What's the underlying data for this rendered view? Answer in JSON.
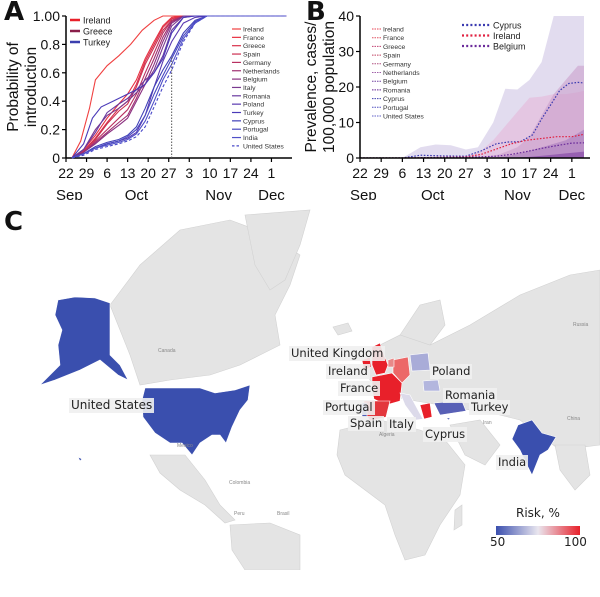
{
  "panels": {
    "a": "A",
    "b": "B",
    "c": "C"
  },
  "chart_data": [
    {
      "id": "A",
      "type": "line",
      "title": "",
      "ylabel": "Probability of introduction",
      "ylabel_lines": [
        "Probability of",
        "introduction"
      ],
      "xlabel": "",
      "ylim": [
        0,
        1
      ],
      "yticks": [
        "0",
        "0.2",
        "0.4",
        "0.6",
        "0.8",
        "1.00"
      ],
      "ytick_values": [
        0,
        0.2,
        0.4,
        0.6,
        0.8,
        1.0
      ],
      "xtick_days": [
        "22",
        "29",
        "6",
        "13",
        "20",
        "27",
        "3",
        "10",
        "17",
        "24",
        "1"
      ],
      "xtick_offsets": [
        0,
        7,
        14,
        21,
        28,
        35,
        42,
        49,
        56,
        63,
        70
      ],
      "months": [
        {
          "label": "Sep",
          "offset": 0
        },
        {
          "label": "Oct",
          "offset": 24
        },
        {
          "label": "Nov",
          "offset": 52
        },
        {
          "label": "Dec",
          "offset": 70
        }
      ],
      "x_range_days": [
        0,
        77
      ],
      "x_axis_note": "days since Sep 22",
      "vline_day": 36,
      "legend_highlight": [
        {
          "name": "Ireland",
          "color": "#e8202a"
        },
        {
          "name": "Greece",
          "color": "#8a1f4a"
        },
        {
          "name": "Turkey",
          "color": "#3b3fae"
        }
      ],
      "series": [
        {
          "name": "Ireland",
          "color": "#f04040",
          "dash": false,
          "x": [
            2,
            5,
            8,
            10,
            14,
            18,
            22,
            26,
            30,
            33,
            36,
            40
          ],
          "y": [
            0,
            0.12,
            0.35,
            0.55,
            0.65,
            0.72,
            0.8,
            0.9,
            0.97,
            1,
            1,
            1
          ]
        },
        {
          "name": "France",
          "color": "#e83040",
          "dash": false,
          "x": [
            2,
            6,
            10,
            14,
            18,
            21,
            24,
            27,
            30,
            33,
            36,
            40,
            44
          ],
          "y": [
            0,
            0.06,
            0.16,
            0.28,
            0.38,
            0.45,
            0.55,
            0.7,
            0.82,
            0.93,
            0.99,
            1,
            1
          ]
        },
        {
          "name": "Greece",
          "color": "#d8304a",
          "dash": false,
          "x": [
            2,
            6,
            10,
            14,
            18,
            21,
            24,
            27,
            30,
            33,
            36,
            40,
            44
          ],
          "y": [
            0,
            0.05,
            0.14,
            0.25,
            0.35,
            0.4,
            0.52,
            0.68,
            0.8,
            0.92,
            0.98,
            1,
            1
          ]
        },
        {
          "name": "Spain",
          "color": "#cc3050",
          "dash": false,
          "x": [
            2,
            6,
            10,
            14,
            18,
            21,
            24,
            27,
            30,
            33,
            36,
            40,
            44
          ],
          "y": [
            0,
            0.05,
            0.13,
            0.24,
            0.33,
            0.38,
            0.5,
            0.66,
            0.78,
            0.9,
            0.97,
            1,
            1
          ]
        },
        {
          "name": "Germany",
          "color": "#b83060",
          "dash": false,
          "x": [
            2,
            6,
            10,
            14,
            18,
            21,
            24,
            27,
            30,
            33,
            36,
            40,
            44
          ],
          "y": [
            0,
            0.04,
            0.12,
            0.2,
            0.28,
            0.34,
            0.45,
            0.6,
            0.74,
            0.88,
            0.97,
            1,
            1
          ]
        },
        {
          "name": "Netherlands",
          "color": "#a03070",
          "dash": false,
          "x": [
            2,
            6,
            10,
            14,
            18,
            21,
            24,
            27,
            30,
            33,
            36,
            40,
            44
          ],
          "y": [
            0,
            0.04,
            0.11,
            0.18,
            0.25,
            0.3,
            0.42,
            0.56,
            0.7,
            0.85,
            0.96,
            1,
            1
          ]
        },
        {
          "name": "Belgium",
          "color": "#8a3080",
          "dash": false,
          "x": [
            2,
            6,
            10,
            14,
            18,
            21,
            24,
            27,
            30,
            33,
            36,
            40,
            44
          ],
          "y": [
            0,
            0.04,
            0.1,
            0.17,
            0.23,
            0.28,
            0.4,
            0.52,
            0.66,
            0.82,
            0.95,
            1,
            1
          ]
        },
        {
          "name": "Italy",
          "color": "#7a3a90",
          "dash": false,
          "x": [
            2,
            6,
            10,
            14,
            18,
            21,
            24,
            27,
            30,
            33,
            36,
            40,
            44
          ],
          "y": [
            0,
            0.06,
            0.2,
            0.3,
            0.35,
            0.4,
            0.46,
            0.52,
            0.62,
            0.78,
            0.93,
            1,
            1
          ]
        },
        {
          "name": "Romania",
          "color": "#6a3aa0",
          "dash": false,
          "x": [
            2,
            6,
            10,
            14,
            18,
            21,
            24,
            27,
            30,
            33,
            36,
            40,
            44
          ],
          "y": [
            0,
            0.06,
            0.18,
            0.32,
            0.38,
            0.42,
            0.48,
            0.55,
            0.6,
            0.72,
            0.9,
            0.99,
            1
          ]
        },
        {
          "name": "Poland",
          "color": "#5a3ab0",
          "dash": false,
          "x": [
            2,
            6,
            10,
            14,
            18,
            21,
            24,
            27,
            30,
            33,
            36,
            40,
            44,
            48
          ],
          "y": [
            0,
            0.03,
            0.07,
            0.1,
            0.12,
            0.14,
            0.18,
            0.3,
            0.5,
            0.68,
            0.82,
            0.95,
            0.99,
            1
          ]
        },
        {
          "name": "Turkey",
          "color": "#4a3ab8",
          "dash": false,
          "x": [
            2,
            6,
            9,
            12,
            16,
            20,
            24,
            27,
            30,
            33,
            36,
            40,
            44
          ],
          "y": [
            0,
            0.1,
            0.28,
            0.36,
            0.4,
            0.44,
            0.48,
            0.52,
            0.6,
            0.7,
            0.88,
            0.99,
            1
          ]
        },
        {
          "name": "Cyprus",
          "color": "#4040b8",
          "dash": false,
          "x": [
            2,
            6,
            10,
            14,
            18,
            21,
            24,
            27,
            30,
            33,
            36,
            40,
            44,
            48
          ],
          "y": [
            0,
            0.03,
            0.08,
            0.11,
            0.13,
            0.16,
            0.22,
            0.35,
            0.5,
            0.62,
            0.72,
            0.88,
            0.97,
            1
          ]
        },
        {
          "name": "Portugal",
          "color": "#4848c0",
          "dash": false,
          "x": [
            2,
            6,
            10,
            14,
            18,
            21,
            24,
            27,
            30,
            33,
            36,
            40,
            44,
            48
          ],
          "y": [
            0,
            0.03,
            0.07,
            0.1,
            0.12,
            0.15,
            0.2,
            0.3,
            0.45,
            0.58,
            0.7,
            0.86,
            0.96,
            1
          ]
        },
        {
          "name": "India",
          "color": "#5050c8",
          "dash": false,
          "x": [
            2,
            6,
            10,
            14,
            18,
            21,
            24,
            27,
            30,
            33,
            36,
            40,
            44,
            48
          ],
          "y": [
            0,
            0.03,
            0.07,
            0.09,
            0.11,
            0.13,
            0.17,
            0.26,
            0.4,
            0.55,
            0.66,
            0.84,
            0.95,
            1
          ]
        },
        {
          "name": "United States",
          "color": "#4848c8",
          "dash": true,
          "x": [
            2,
            6,
            10,
            14,
            18,
            21,
            24,
            27,
            30,
            33,
            36,
            40,
            44,
            48
          ],
          "y": [
            0,
            0.02,
            0.06,
            0.08,
            0.1,
            0.12,
            0.15,
            0.22,
            0.36,
            0.5,
            0.62,
            0.82,
            0.95,
            1
          ]
        }
      ]
    },
    {
      "id": "B",
      "type": "area",
      "title": "",
      "ylabel": "Prevalence, cases/ 100,000 population",
      "ylabel_lines": [
        "Prevalence, cases/",
        "100,000 population"
      ],
      "ylim": [
        0,
        40
      ],
      "yticks": [
        "0",
        "10",
        "20",
        "30",
        "40"
      ],
      "ytick_values": [
        0,
        10,
        20,
        30,
        40
      ],
      "xtick_days": [
        "22",
        "29",
        "6",
        "13",
        "20",
        "27",
        "3",
        "10",
        "17",
        "24",
        "1"
      ],
      "xtick_offsets": [
        0,
        7,
        14,
        21,
        28,
        35,
        42,
        49,
        56,
        63,
        70
      ],
      "months": [
        {
          "label": "Sep",
          "offset": 0
        },
        {
          "label": "Oct",
          "offset": 24
        },
        {
          "label": "Nov",
          "offset": 52
        },
        {
          "label": "Dec",
          "offset": 70
        }
      ],
      "x_range_days": [
        0,
        76
      ],
      "legend_small": [
        {
          "name": "Ireland",
          "color": "#e84050"
        },
        {
          "name": "France",
          "color": "#e05060"
        },
        {
          "name": "Greece",
          "color": "#c04070"
        },
        {
          "name": "Spain",
          "color": "#c04060"
        },
        {
          "name": "Germany",
          "color": "#b05080"
        },
        {
          "name": "Netherlands",
          "color": "#a060a8"
        },
        {
          "name": "Belgium",
          "color": "#7040a0"
        },
        {
          "name": "Romania",
          "color": "#602090"
        },
        {
          "name": "Cyprus",
          "color": "#4040b0"
        },
        {
          "name": "Portugal",
          "color": "#5050c0"
        },
        {
          "name": "United States",
          "color": "#6060c8"
        }
      ],
      "legend_highlight": [
        {
          "name": "Cyprus",
          "color": "#3a3ab0"
        },
        {
          "name": "Ireland",
          "color": "#e02040"
        },
        {
          "name": "Belgium",
          "color": "#6a2a9a"
        }
      ],
      "bands": [
        {
          "name": "widest-band",
          "color": "#d8d0ea",
          "opacity": 0.75,
          "x": [
            0,
            14,
            20,
            25,
            30,
            35,
            39,
            44,
            48,
            52,
            56,
            60,
            64,
            68,
            72,
            76
          ],
          "y": [
            0,
            0,
            3,
            3.8,
            3.6,
            2.4,
            3,
            10,
            19.5,
            19.3,
            22,
            27,
            40,
            40,
            40,
            40
          ]
        },
        {
          "name": "upper-band",
          "color": "#e6b8d8",
          "opacity": 0.6,
          "x": [
            0,
            30,
            36,
            40,
            44,
            48,
            52,
            56,
            60,
            64,
            68,
            72,
            76
          ],
          "y": [
            0,
            0,
            0.8,
            2,
            5,
            9,
            13,
            17,
            17.3,
            18,
            18,
            18.5,
            19.3
          ]
        },
        {
          "name": "mid-band",
          "color": "#c89ac8",
          "opacity": 0.55,
          "x": [
            0,
            40,
            46,
            52,
            56,
            60,
            64,
            68,
            72,
            76
          ],
          "y": [
            0,
            0,
            1,
            3,
            6,
            12,
            18,
            22,
            26,
            26
          ]
        },
        {
          "name": "lower-band",
          "color": "#a070b8",
          "opacity": 0.5,
          "x": [
            0,
            44,
            50,
            56,
            62,
            68,
            72,
            76
          ],
          "y": [
            0,
            0,
            0.8,
            2,
            3.5,
            5,
            7,
            9
          ]
        },
        {
          "name": "base-band",
          "color": "#7a3aa0",
          "opacity": 0.55,
          "x": [
            0,
            48,
            56,
            62,
            68,
            72,
            76
          ],
          "y": [
            0,
            0,
            0.3,
            0.8,
            1.3,
            1.6,
            2
          ]
        }
      ],
      "series": [
        {
          "name": "Cyprus",
          "color": "#3a3ab0",
          "x": [
            0,
            14,
            20,
            27,
            35,
            40,
            45,
            49,
            53,
            57,
            60,
            63,
            66,
            69,
            72,
            76
          ],
          "y": [
            0,
            0,
            0.8,
            0.6,
            0.5,
            2,
            4,
            4.5,
            4.6,
            6.5,
            11,
            15,
            19,
            21,
            21.3,
            21
          ]
        },
        {
          "name": "Ireland",
          "color": "#e02040",
          "x": [
            0,
            14,
            35,
            40,
            45,
            50,
            55,
            60,
            65,
            70,
            76
          ],
          "y": [
            0,
            0,
            0.3,
            1,
            2.5,
            4,
            5,
            5.5,
            6,
            6,
            7
          ]
        },
        {
          "name": "Belgium",
          "color": "#6a2a9a",
          "x": [
            0,
            14,
            35,
            45,
            50,
            55,
            60,
            65,
            70,
            76
          ],
          "y": [
            0,
            0,
            0.2,
            0.5,
            1,
            1.8,
            2.7,
            3.5,
            4.2,
            4.3
          ]
        }
      ]
    }
  ],
  "map": {
    "title": "Risk, %",
    "legend_min": "50",
    "legend_max": "100",
    "colors": {
      "low": "#3b4fae",
      "mid": "#e9e6ef",
      "high": "#e8202a",
      "land": "#e4e4e4",
      "water": "#ffffff"
    },
    "labels": [
      {
        "name": "United Kingdom",
        "text": "United Kingdom"
      },
      {
        "name": "Ireland",
        "text": "Ireland"
      },
      {
        "name": "France",
        "text": "France"
      },
      {
        "name": "Portugal",
        "text": "Portugal"
      },
      {
        "name": "Spain",
        "text": "Spain"
      },
      {
        "name": "Italy",
        "text": "Italy"
      },
      {
        "name": "Poland",
        "text": "Poland"
      },
      {
        "name": "Romania",
        "text": "Romania"
      },
      {
        "name": "Turkey",
        "text": "Turkey"
      },
      {
        "name": "Cyprus",
        "text": "Cyprus"
      },
      {
        "name": "India",
        "text": "India"
      },
      {
        "name": "United States",
        "text": "United States"
      }
    ],
    "basemap_labels": [
      "Canada",
      "Mexico",
      "Colombia",
      "Peru",
      "Brasil",
      "Russia",
      "China",
      "Iran",
      "Algeria"
    ]
  }
}
